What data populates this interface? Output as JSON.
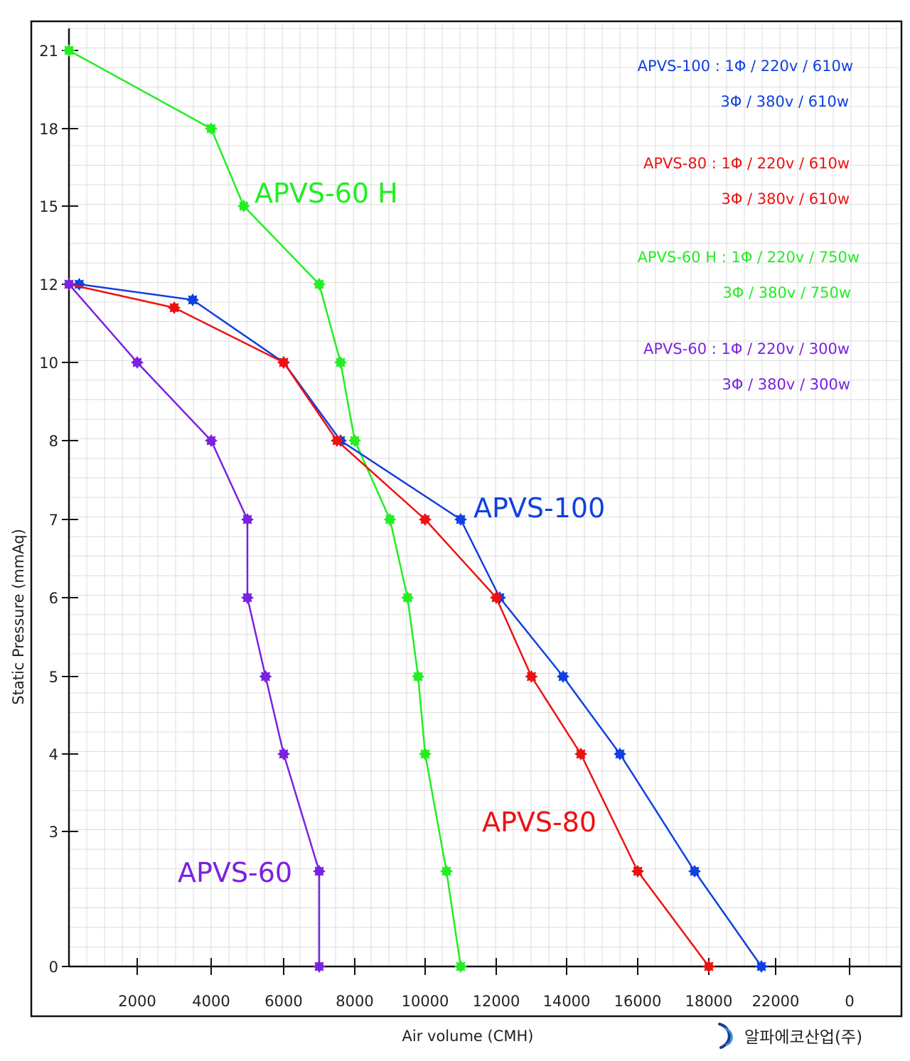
{
  "chart_data": {
    "type": "line",
    "xlabel": "Air volume (CMH)",
    "ylabel": "Static Pressure (mmAq)",
    "x_ticks": [
      "2000",
      "4000",
      "6000",
      "8000",
      "10000",
      "12000",
      "14000",
      "16000",
      "18000",
      "22000",
      "0"
    ],
    "y_ticks": [
      "0",
      "3",
      "4",
      "5",
      "6",
      "7",
      "8",
      "10",
      "12",
      "15",
      "18",
      "21"
    ],
    "grid": true,
    "series": [
      {
        "name": "APVS-60 H",
        "color": "#22ee22",
        "points": [
          [
            0,
            21
          ],
          [
            4000,
            18
          ],
          [
            4900,
            15
          ],
          [
            7000,
            12
          ],
          [
            7600,
            10
          ],
          [
            8000,
            8
          ],
          [
            9000,
            7
          ],
          [
            9500,
            6
          ],
          [
            9800,
            5
          ],
          [
            10000,
            4
          ],
          [
            10600,
            2.5
          ],
          [
            11000,
            0
          ]
        ]
      },
      {
        "name": "APVS-100",
        "color": "#1040e0",
        "points": [
          [
            300,
            12
          ],
          [
            3500,
            11.6
          ],
          [
            6000,
            10
          ],
          [
            7600,
            8
          ],
          [
            11000,
            7
          ],
          [
            12100,
            6
          ],
          [
            13900,
            5
          ],
          [
            15500,
            4
          ],
          [
            17600,
            2.5
          ],
          [
            20000,
            0
          ]
        ]
      },
      {
        "name": "APVS-80",
        "color": "#ee1111",
        "points": [
          [
            0,
            12
          ],
          [
            3000,
            11.4
          ],
          [
            6000,
            10
          ],
          [
            7500,
            8
          ],
          [
            10000,
            7
          ],
          [
            12000,
            6
          ],
          [
            13000,
            5
          ],
          [
            14400,
            4
          ],
          [
            16000,
            2.5
          ],
          [
            18000,
            0
          ]
        ]
      },
      {
        "name": "APVS-60",
        "color": "#7a22e0",
        "points": [
          [
            0,
            12
          ],
          [
            2000,
            10
          ],
          [
            4000,
            8
          ],
          [
            5000,
            7
          ],
          [
            5000,
            6
          ],
          [
            5500,
            5
          ],
          [
            6000,
            4
          ],
          [
            7000,
            2.5
          ],
          [
            7000,
            0
          ]
        ]
      }
    ]
  },
  "curve_labels": {
    "apvs60h": "APVS-60 H",
    "apvs100": "APVS-100",
    "apvs80": "APVS-80",
    "apvs60": "APVS-60"
  },
  "specs": {
    "apvs100_1": "APVS-100 : 1Φ / 220v / 610w",
    "apvs100_3": "3Φ / 380v / 610w",
    "apvs80_1": "APVS-80 : 1Φ / 220v / 610w",
    "apvs80_3": "3Φ / 380v / 610w",
    "apvs60h_1": "APVS-60 H : 1Φ / 220v / 750w",
    "apvs60h_3": "3Φ / 380v / 750w",
    "apvs60_1": "APVS-60 : 1Φ / 220v / 300w",
    "apvs60_3": "3Φ / 380v / 300w"
  },
  "brand": {
    "name": "알파에코산업(주)",
    "logo_icon": "wave-logo-icon",
    "color": "#1a3a8a"
  }
}
